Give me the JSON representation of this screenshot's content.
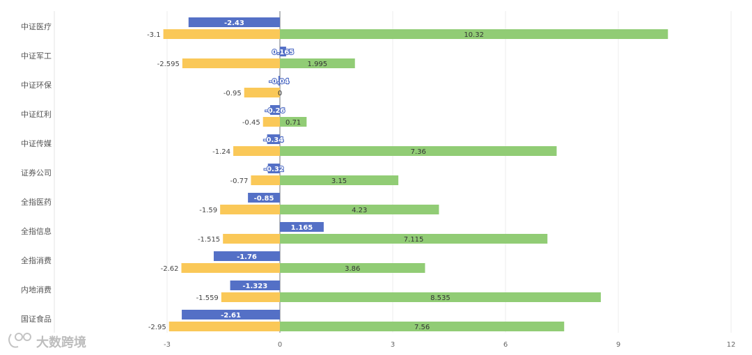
{
  "chart_data": {
    "type": "bar",
    "orientation": "horizontal",
    "title": "",
    "xlabel": "",
    "ylabel": "",
    "categories": [
      "中证医疗",
      "中证军工",
      "中证环保",
      "中证红利",
      "中证传媒",
      "证券公司",
      "全指医药",
      "全指信息",
      "全指消费",
      "内地消费",
      "国证食品"
    ],
    "xlim": [
      -3,
      12
    ],
    "xticks": [
      -3,
      0,
      3,
      6,
      9,
      12
    ],
    "series": [
      {
        "name": "series-blue",
        "color": "#5470c6",
        "values": [
          -2.43,
          0.165,
          -0.04,
          -0.26,
          -0.34,
          -0.32,
          -0.85,
          1.165,
          -1.76,
          -1.323,
          -2.61
        ],
        "labels": [
          "-2.43",
          "0.165",
          "-0.04",
          "-0.26",
          "-0.34",
          "-0.32",
          "-0.85",
          "1.165",
          "-1.76",
          "-1.323",
          "-2.61"
        ]
      },
      {
        "name": "series-yellow",
        "color": "#fac858",
        "values": [
          -3.1,
          -2.595,
          -0.95,
          -0.45,
          -1.24,
          -0.77,
          -1.59,
          -1.515,
          -2.62,
          -1.559,
          -2.95
        ],
        "labels": [
          "-3.1",
          "-2.595",
          "-0.95",
          "-0.45",
          "-1.24",
          "-0.77",
          "-1.59",
          "-1.515",
          "-2.62",
          "-1.559",
          "-2.95"
        ]
      },
      {
        "name": "series-green",
        "color": "#91cc75",
        "values": [
          10.32,
          1.995,
          0,
          0.71,
          7.36,
          3.15,
          4.23,
          7.115,
          3.86,
          8.535,
          7.56
        ],
        "labels": [
          "10.32",
          "1.995",
          "0",
          "0.71",
          "7.36",
          "3.15",
          "4.23",
          "7.115",
          "3.86",
          "8.535",
          "7.56"
        ]
      }
    ],
    "grid": true,
    "legend": "none"
  },
  "watermark": {
    "text": "大数跨境"
  }
}
